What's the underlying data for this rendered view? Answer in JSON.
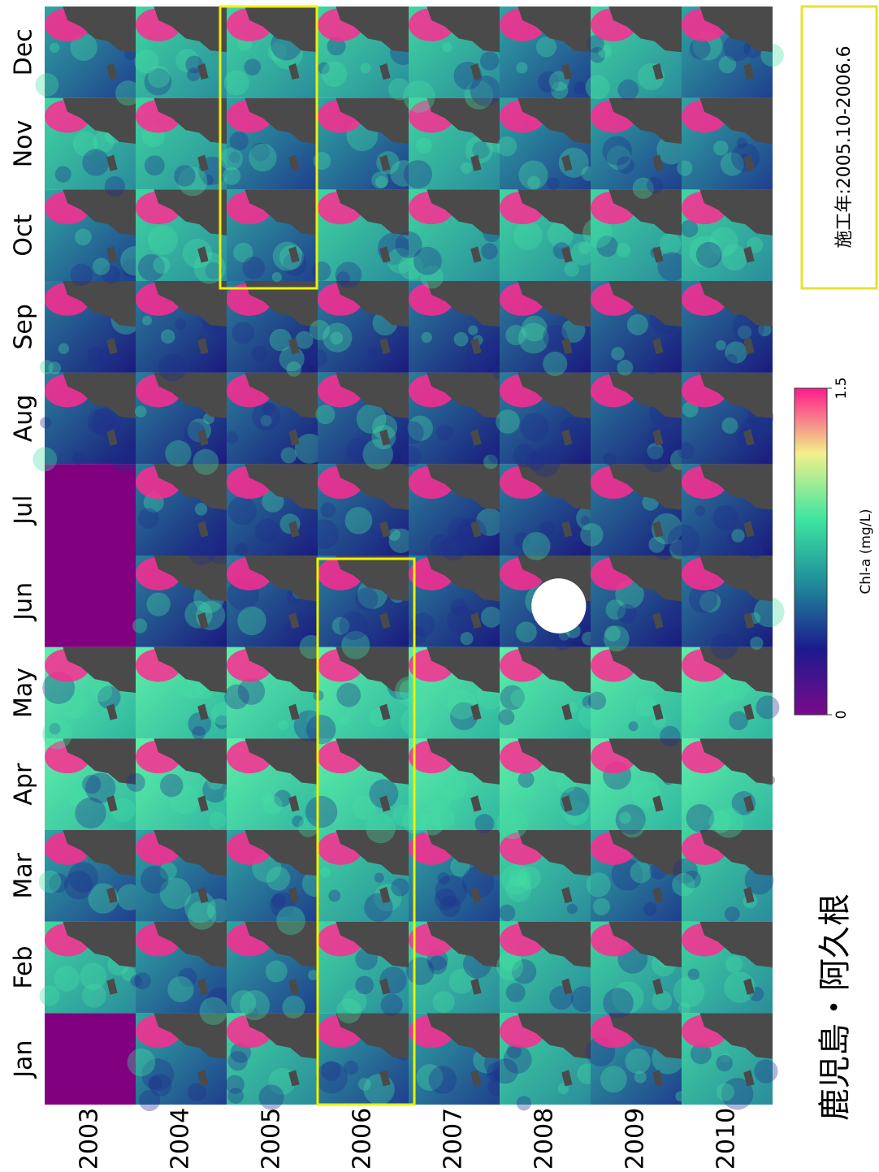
{
  "title": "鹿児島・阿久根",
  "months": [
    "Jan",
    "Feb",
    "Mar",
    "Apr",
    "May",
    "Jun",
    "Jul",
    "Aug",
    "Sep",
    "Oct",
    "Nov",
    "Dec"
  ],
  "years": [
    "2003",
    "2004",
    "2005",
    "2006",
    "2007",
    "2008",
    "2009",
    "2010"
  ],
  "colorbar": {
    "label": "Chl-a (mg/L)",
    "ticks": [
      0,
      1.5
    ]
  },
  "note": "施工年:2005.10-2006.6"
}
